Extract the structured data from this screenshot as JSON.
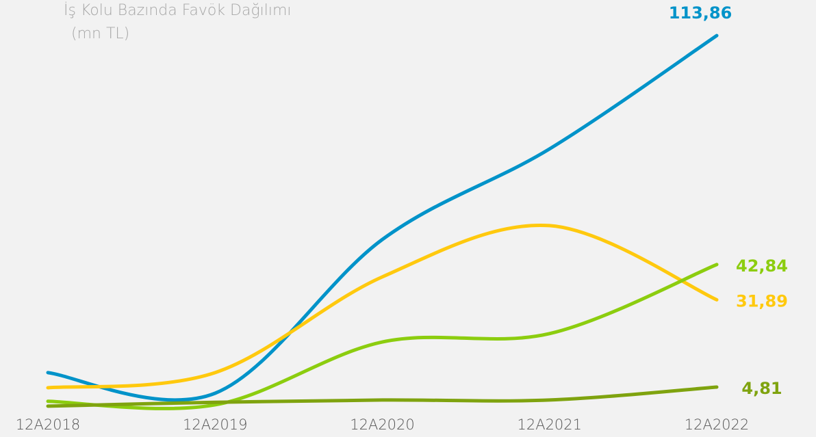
{
  "chart_data": {
    "type": "line",
    "title": "İş Kolu Bazında Favök Dağılımı",
    "subtitle": "(mn TL)",
    "categories": [
      "12A2018",
      "12A2019",
      "12A2020",
      "12A2021",
      "12A2022"
    ],
    "ylim": [
      -2,
      120
    ],
    "grid": false,
    "smooth": true,
    "series": [
      {
        "color": "#0093c9",
        "values": [
          9.3,
          2.9,
          50.6,
          78.7,
          113.86
        ],
        "value_labels": [
          null,
          null,
          null,
          null,
          "113,86"
        ]
      },
      {
        "color": "#ffc90e",
        "values": [
          4.6,
          9.3,
          39,
          54.9,
          31.89
        ],
        "value_labels": [
          null,
          null,
          null,
          null,
          "31,89"
        ]
      },
      {
        "color": "#8ccd0f",
        "values": [
          0.4,
          -0.7,
          18.8,
          21.4,
          42.84
        ],
        "value_labels": [
          null,
          null,
          null,
          null,
          "42,84"
        ]
      },
      {
        "color": "#7fa30f",
        "values": [
          -1.1,
          0.1,
          0.8,
          0.8,
          4.81
        ],
        "value_labels": [
          null,
          null,
          null,
          null,
          "4,81"
        ]
      }
    ]
  }
}
